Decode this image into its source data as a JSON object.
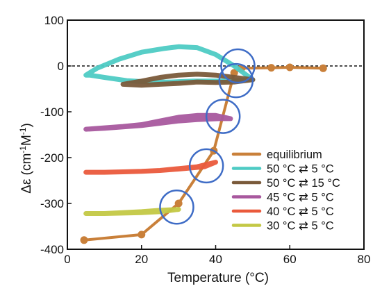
{
  "chart_data": {
    "type": "line",
    "title": "",
    "xlabel": "Temperature (°C)",
    "ylabel_main": "Δε (cm",
    "ylabel_sup1": "-1",
    "ylabel_mid": "M",
    "ylabel_sup2": "-1",
    "ylabel_end": ")",
    "xlim": [
      0,
      80
    ],
    "ylim": [
      -400,
      100
    ],
    "xticks": [
      0,
      20,
      40,
      60,
      80
    ],
    "yticks": [
      -400,
      -300,
      -200,
      -100,
      0,
      100
    ],
    "zero_reference_line": 0,
    "grid": false,
    "legend_position": "bottom-right",
    "series": [
      {
        "name": "equilibrium",
        "color": "#c9803a",
        "style": "line-markers",
        "x": [
          4.5,
          20,
          30,
          39.5,
          45,
          47,
          55,
          60,
          69
        ],
        "y": [
          -380,
          -368,
          -300,
          -185,
          -15,
          -5,
          -4,
          -3,
          -5
        ]
      },
      {
        "name": "50 °C ⇄ 5 °C",
        "color": "#4ecbc4",
        "style": "loop",
        "x": [
          5,
          8,
          14,
          20,
          26,
          30,
          35,
          40,
          45,
          50,
          46,
          40,
          34,
          28,
          22,
          16,
          10,
          6,
          5
        ],
        "y": [
          -20,
          -5,
          15,
          30,
          38,
          42,
          40,
          25,
          0,
          -30,
          -32,
          -33,
          -33,
          -35,
          -35,
          -32,
          -25,
          -20,
          -20
        ]
      },
      {
        "name": "50 °C ⇄ 15 °C",
        "color": "#7a5a3a",
        "style": "loop",
        "x": [
          15,
          20,
          25,
          30,
          35,
          40,
          45,
          50,
          45,
          40,
          35,
          30,
          25,
          20,
          15
        ],
        "y": [
          -40,
          -33,
          -25,
          -20,
          -18,
          -20,
          -25,
          -30,
          -35,
          -36,
          -35,
          -38,
          -40,
          -42,
          -40
        ]
      },
      {
        "name": "45 °C ⇄ 5 °C",
        "color": "#a8589e",
        "style": "loop",
        "x": [
          5,
          10,
          15,
          20,
          25,
          30,
          35,
          40,
          44,
          41,
          35,
          30,
          25,
          20,
          15,
          10,
          5
        ],
        "y": [
          -138,
          -135,
          -132,
          -128,
          -120,
          -112,
          -108,
          -108,
          -115,
          -115,
          -117,
          -120,
          -125,
          -130,
          -133,
          -136,
          -138
        ]
      },
      {
        "name": "40 °C ⇄ 5 °C",
        "color": "#ea5a3c",
        "style": "loop",
        "x": [
          5,
          10,
          15,
          20,
          25,
          30,
          35,
          40,
          37,
          30,
          25,
          20,
          15,
          10,
          5
        ],
        "y": [
          -232,
          -232,
          -231,
          -230,
          -228,
          -224,
          -220,
          -210,
          -220,
          -225,
          -228,
          -230,
          -231,
          -232,
          -232
        ]
      },
      {
        "name": "30 °C ⇄ 5 °C",
        "color": "#c3c845",
        "style": "loop",
        "x": [
          5,
          10,
          15,
          20,
          25,
          30,
          25,
          20,
          15,
          10,
          5
        ],
        "y": [
          -322,
          -322,
          -321,
          -320,
          -318,
          -313,
          -315,
          -318,
          -320,
          -322,
          -322
        ]
      }
    ],
    "highlight_circles": {
      "color": "#3e6cc6",
      "centers": [
        {
          "x": 46,
          "y": 0
        },
        {
          "x": 45.5,
          "y": -32
        },
        {
          "x": 42,
          "y": -110
        },
        {
          "x": 37.5,
          "y": -218
        },
        {
          "x": 29.5,
          "y": -308
        }
      ]
    }
  }
}
